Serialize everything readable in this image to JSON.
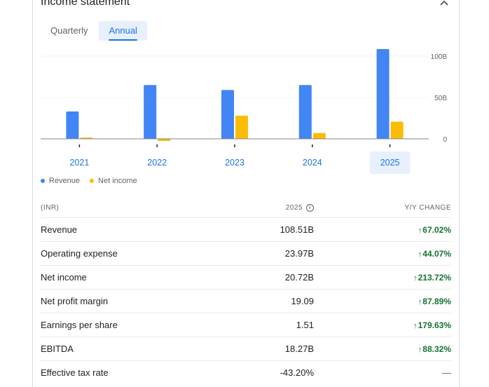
{
  "header": {
    "title": "Income statement"
  },
  "tabs": [
    {
      "label": "Quarterly",
      "active": false
    },
    {
      "label": "Annual",
      "active": true
    }
  ],
  "chart_data": {
    "type": "bar",
    "categories": [
      "2021",
      "2022",
      "2023",
      "2024",
      "2025"
    ],
    "selected_category": "2025",
    "series": [
      {
        "name": "Revenue",
        "color": "#4285f4",
        "values": [
          33,
          65,
          59,
          65,
          108.51
        ]
      },
      {
        "name": "Net income",
        "color": "#fbbc04",
        "values": [
          1.5,
          -2.5,
          28,
          7,
          20.72
        ]
      }
    ],
    "y_ticks": [
      "0",
      "50B",
      "100B"
    ],
    "y_tick_values": [
      0,
      50,
      100
    ],
    "ylim": [
      -5,
      120
    ],
    "unit": "B",
    "grid": true,
    "legend": "bottom-left"
  },
  "legend": [
    {
      "label": "Revenue",
      "color": "#4285f4"
    },
    {
      "label": "Net income",
      "color": "#fbbc04"
    }
  ],
  "table": {
    "col_label": "(INR)",
    "col_year": "2025",
    "col_change": "Y/Y CHANGE",
    "rows": [
      {
        "label": "Revenue",
        "value": "108.51B",
        "change": "67.02%",
        "dir": "up"
      },
      {
        "label": "Operating expense",
        "value": "23.97B",
        "change": "44.07%",
        "dir": "up"
      },
      {
        "label": "Net income",
        "value": "20.72B",
        "change": "213.72%",
        "dir": "up"
      },
      {
        "label": "Net profit margin",
        "value": "19.09",
        "change": "87.89%",
        "dir": "up"
      },
      {
        "label": "Earnings per share",
        "value": "1.51",
        "change": "179.63%",
        "dir": "up"
      },
      {
        "label": "EBITDA",
        "value": "18.27B",
        "change": "88.32%",
        "dir": "up"
      },
      {
        "label": "Effective tax rate",
        "value": "-43.20%",
        "change": "—",
        "dir": "none"
      }
    ]
  }
}
